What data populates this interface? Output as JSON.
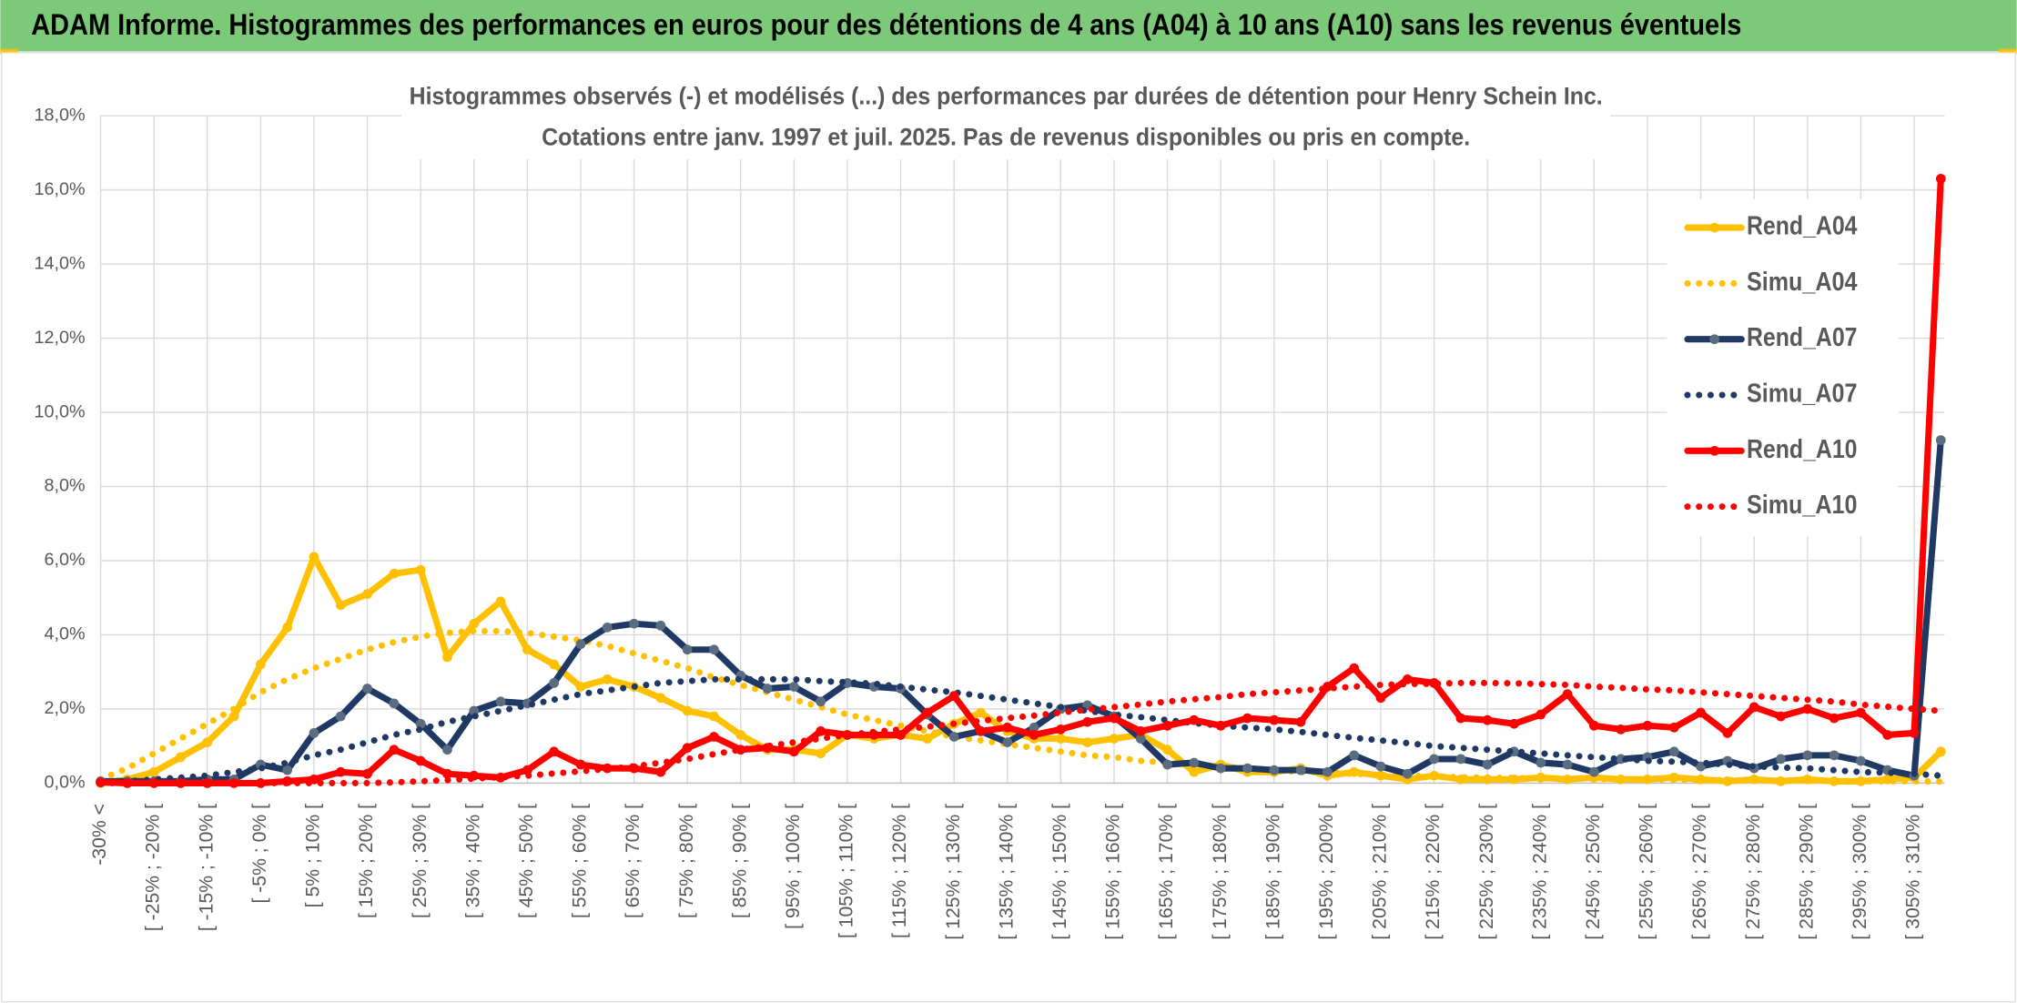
{
  "header": {
    "title": "ADAM Informe. Histogrammes des performances en euros pour des détentions de 4 ans (A04) à 10 ans (A10) sans les revenus éventuels"
  },
  "chart_data": {
    "type": "line",
    "title": "Histogrammes observés (-) et modélisés (...) des performances par durées de détention pour Henry Schein Inc.",
    "subtitle": "Cotations entre janv. 1997 et juil. 2025. Pas de revenus disponibles ou pris en compte.",
    "categories": [
      "-30% <",
      null,
      "[ -25% ; -20% [",
      null,
      "[ -15% ; -10% [",
      null,
      "[ -5% ; 0% [",
      null,
      "[ 5% ; 10% [",
      null,
      "[ 15% ; 20% [",
      null,
      "[ 25% ; 30% [",
      null,
      "[ 35% ; 40% [",
      null,
      "[ 45% ; 50% [",
      null,
      "[ 55% ; 60% [",
      null,
      "[ 65% ; 70% [",
      null,
      "[ 75% ; 80% [",
      null,
      "[ 85% ; 90% [",
      null,
      "[ 95% ; 100% [",
      null,
      "[ 105% ; 110% [",
      null,
      "[ 115% ; 120% [",
      null,
      "[ 125% ; 130% [",
      null,
      "[ 135% ; 140% [",
      null,
      "[ 145% ; 150% [",
      null,
      "[ 155% ; 160% [",
      null,
      "[ 165% ; 170% [",
      null,
      "[ 175% ; 180% [",
      null,
      "[ 185% ; 190% [",
      null,
      "[ 195% ; 200% [",
      null,
      "[ 205% ; 210% [",
      null,
      "[ 215% ; 220% [",
      null,
      "[ 225% ; 230% [",
      null,
      "[ 235% ; 240% [",
      null,
      "[ 245% ; 250% [",
      null,
      "[ 255% ; 260% [",
      null,
      "[ 265% ; 270% [",
      null,
      "[ 275% ; 280% [",
      null,
      "[ 285% ; 290% [",
      null,
      "[ 295% ; 300% [",
      null,
      "[ 305% ; 310% [",
      null
    ],
    "series": [
      {
        "name": "Rend_A04",
        "color": "#FFC000",
        "line_style": "solid",
        "values": [
          0.0,
          0.1,
          0.3,
          0.7,
          1.1,
          1.8,
          3.2,
          4.2,
          6.1,
          4.8,
          5.1,
          5.65,
          5.75,
          3.4,
          4.3,
          4.9,
          3.6,
          3.2,
          2.6,
          2.8,
          2.6,
          2.3,
          1.95,
          1.8,
          1.3,
          0.9,
          0.9,
          0.8,
          1.3,
          1.2,
          1.3,
          1.2,
          1.6,
          1.9,
          1.4,
          1.2,
          1.2,
          1.1,
          1.2,
          1.3,
          0.9,
          0.3,
          0.5,
          0.3,
          0.3,
          0.4,
          0.2,
          0.3,
          0.2,
          0.1,
          0.2,
          0.1,
          0.1,
          0.1,
          0.15,
          0.1,
          0.15,
          0.1,
          0.1,
          0.15,
          0.1,
          0.05,
          0.1,
          0.05,
          0.1,
          0.05,
          0.05,
          0.1,
          0.15,
          0.85
        ]
      },
      {
        "name": "Simu_A04",
        "color": "#FFC000",
        "line_style": "dotted",
        "values": [
          0.1,
          0.4,
          0.8,
          1.2,
          1.6,
          2.0,
          2.45,
          2.8,
          3.1,
          3.35,
          3.6,
          3.8,
          3.95,
          4.05,
          4.1,
          4.1,
          4.05,
          3.95,
          3.85,
          3.7,
          3.5,
          3.3,
          3.1,
          2.85,
          2.65,
          2.45,
          2.25,
          2.05,
          1.85,
          1.7,
          1.55,
          1.4,
          1.25,
          1.15,
          1.05,
          0.95,
          0.85,
          0.75,
          0.7,
          0.6,
          0.55,
          0.5,
          0.45,
          0.4,
          0.35,
          0.3,
          0.28,
          0.25,
          0.22,
          0.2,
          0.18,
          0.16,
          0.15,
          0.14,
          0.13,
          0.12,
          0.11,
          0.1,
          0.1,
          0.09,
          0.08,
          0.08,
          0.07,
          0.07,
          0.06,
          0.06,
          0.05,
          0.05,
          0.05,
          0.04
        ]
      },
      {
        "name": "Rend_A07",
        "color": "#1F3864",
        "marker_color": "#5B6B80",
        "line_style": "solid",
        "values": [
          0.05,
          0.05,
          0.05,
          0.05,
          0.1,
          0.1,
          0.5,
          0.35,
          1.35,
          1.8,
          2.55,
          2.15,
          1.6,
          0.9,
          1.95,
          2.2,
          2.15,
          2.7,
          3.75,
          4.2,
          4.3,
          4.25,
          3.6,
          3.6,
          2.9,
          2.55,
          2.6,
          2.2,
          2.7,
          2.6,
          2.55,
          1.85,
          1.25,
          1.4,
          1.1,
          1.5,
          2.0,
          2.1,
          1.8,
          1.2,
          0.5,
          0.55,
          0.4,
          0.4,
          0.35,
          0.35,
          0.3,
          0.75,
          0.45,
          0.25,
          0.65,
          0.65,
          0.5,
          0.85,
          0.55,
          0.5,
          0.3,
          0.65,
          0.7,
          0.85,
          0.45,
          0.6,
          0.4,
          0.65,
          0.75,
          0.75,
          0.6,
          0.35,
          0.2,
          9.25
        ]
      },
      {
        "name": "Simu_A07",
        "color": "#1F3864",
        "line_style": "dotted",
        "values": [
          0.0,
          0.05,
          0.1,
          0.15,
          0.2,
          0.3,
          0.4,
          0.55,
          0.75,
          0.9,
          1.1,
          1.3,
          1.45,
          1.65,
          1.8,
          1.95,
          2.1,
          2.25,
          2.4,
          2.5,
          2.6,
          2.7,
          2.75,
          2.8,
          2.8,
          2.8,
          2.8,
          2.75,
          2.72,
          2.68,
          2.6,
          2.52,
          2.45,
          2.35,
          2.25,
          2.15,
          2.05,
          1.95,
          1.85,
          1.78,
          1.7,
          1.62,
          1.55,
          1.5,
          1.45,
          1.38,
          1.3,
          1.22,
          1.15,
          1.08,
          1.0,
          0.95,
          0.9,
          0.85,
          0.8,
          0.75,
          0.7,
          0.65,
          0.6,
          0.58,
          0.55,
          0.5,
          0.45,
          0.42,
          0.4,
          0.35,
          0.3,
          0.28,
          0.25,
          0.2
        ]
      },
      {
        "name": "Rend_A10",
        "color": "#FF0000",
        "line_style": "solid",
        "values": [
          0.02,
          0,
          0,
          0,
          0,
          0,
          0,
          0.05,
          0.1,
          0.3,
          0.25,
          0.9,
          0.6,
          0.25,
          0.2,
          0.15,
          0.35,
          0.85,
          0.5,
          0.4,
          0.4,
          0.3,
          0.95,
          1.25,
          0.9,
          0.95,
          0.85,
          1.4,
          1.3,
          1.3,
          1.3,
          1.9,
          2.35,
          1.4,
          1.5,
          1.3,
          1.45,
          1.65,
          1.75,
          1.4,
          1.55,
          1.7,
          1.55,
          1.75,
          1.7,
          1.65,
          2.6,
          3.1,
          2.3,
          2.8,
          2.7,
          1.75,
          1.7,
          1.6,
          1.85,
          2.4,
          1.55,
          1.45,
          1.55,
          1.5,
          1.9,
          1.35,
          2.05,
          1.8,
          2.0,
          1.75,
          1.9,
          1.3,
          1.35,
          16.3
        ]
      },
      {
        "name": "Simu_A10",
        "color": "#FF0000",
        "line_style": "dotted",
        "values": [
          0,
          0,
          0,
          0,
          0,
          0,
          0,
          0,
          0,
          0,
          0,
          0.02,
          0.05,
          0.08,
          0.12,
          0.16,
          0.2,
          0.26,
          0.32,
          0.38,
          0.45,
          0.55,
          0.65,
          0.78,
          0.9,
          1.0,
          1.1,
          1.2,
          1.3,
          1.38,
          1.45,
          1.52,
          1.6,
          1.68,
          1.75,
          1.82,
          1.9,
          1.98,
          2.05,
          2.12,
          2.2,
          2.26,
          2.32,
          2.4,
          2.45,
          2.5,
          2.55,
          2.6,
          2.65,
          2.67,
          2.68,
          2.7,
          2.7,
          2.69,
          2.67,
          2.65,
          2.6,
          2.57,
          2.53,
          2.5,
          2.45,
          2.4,
          2.35,
          2.3,
          2.25,
          2.2,
          2.12,
          2.06,
          2.0,
          1.95
        ]
      }
    ],
    "ylim": [
      0,
      18
    ],
    "yticks": [
      {
        "value": 0,
        "label": "0,0%"
      },
      {
        "value": 2,
        "label": "2,0%"
      },
      {
        "value": 4,
        "label": "4,0%"
      },
      {
        "value": 6,
        "label": "6,0%"
      },
      {
        "value": 8,
        "label": "8,0%"
      },
      {
        "value": 10,
        "label": "10,0%"
      },
      {
        "value": 12,
        "label": "12,0%"
      },
      {
        "value": 14,
        "label": "14,0%"
      },
      {
        "value": 16,
        "label": "16,0%"
      },
      {
        "value": 18,
        "label": "18,0%"
      }
    ],
    "grid": true,
    "legend": "right"
  }
}
